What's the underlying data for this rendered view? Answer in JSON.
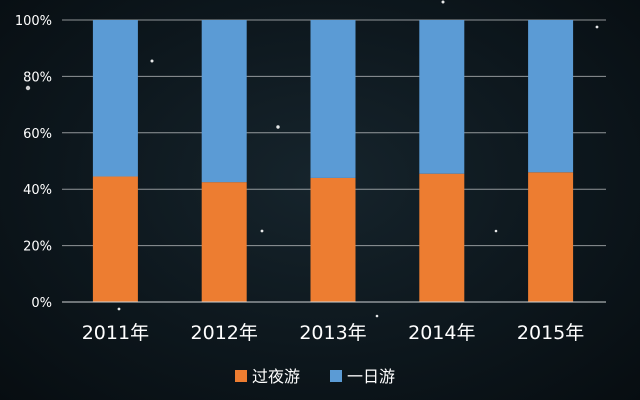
{
  "chart_data": {
    "type": "bar",
    "stacked": true,
    "normalized": true,
    "categories": [
      "2011年",
      "2012年",
      "2013年",
      "2014年",
      "2015年"
    ],
    "series": [
      {
        "name": "过夜游",
        "values": [
          44.5,
          42.5,
          44,
          45.5,
          46
        ],
        "color": "#ed7d31"
      },
      {
        "name": "一日游",
        "values": [
          55.5,
          57.5,
          56,
          54.5,
          54
        ],
        "color": "#5b9bd5"
      }
    ],
    "y_ticks": [
      "0%",
      "20%",
      "40%",
      "60%",
      "80%",
      "100%"
    ],
    "ylim": [
      0,
      100
    ],
    "grid": true,
    "legend_position": "bottom",
    "background": "#0d171d"
  }
}
